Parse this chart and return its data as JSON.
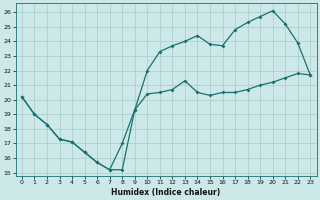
{
  "xlabel": "Humidex (Indice chaleur)",
  "bg_color": "#cce8e8",
  "grid_color": "#aacccc",
  "line_color": "#1a7070",
  "xlim": [
    -0.5,
    23.5
  ],
  "ylim": [
    14.8,
    26.6
  ],
  "xticks": [
    0,
    1,
    2,
    3,
    4,
    5,
    6,
    7,
    8,
    9,
    10,
    11,
    12,
    13,
    14,
    15,
    16,
    17,
    18,
    19,
    20,
    21,
    22,
    23
  ],
  "yticks": [
    15,
    16,
    17,
    18,
    19,
    20,
    21,
    22,
    23,
    24,
    25,
    26
  ],
  "line1_x": [
    0,
    1,
    2,
    3,
    4,
    5,
    6,
    7,
    8,
    9,
    10,
    11,
    12,
    13,
    14,
    15,
    16,
    17,
    18,
    19,
    20,
    21,
    22,
    23
  ],
  "line1_y": [
    20.2,
    19.0,
    18.3,
    17.3,
    17.1,
    16.4,
    15.7,
    15.2,
    15.2,
    19.3,
    20.4,
    20.5,
    20.7,
    21.3,
    20.5,
    20.3,
    20.5,
    20.5,
    20.7,
    21.0,
    21.2,
    21.5,
    21.8,
    21.7
  ],
  "line2_x": [
    0,
    1,
    2,
    3,
    4,
    5,
    6,
    7,
    8,
    9,
    10,
    11,
    12,
    13,
    14,
    15,
    16,
    17,
    18,
    19,
    20,
    21,
    22,
    23
  ],
  "line2_y": [
    20.2,
    19.0,
    18.3,
    17.3,
    17.1,
    16.4,
    15.7,
    15.2,
    17.0,
    19.3,
    22.0,
    23.3,
    23.7,
    24.0,
    24.4,
    23.8,
    23.7,
    24.8,
    25.3,
    25.7,
    26.1,
    25.2,
    23.9,
    21.7
  ]
}
